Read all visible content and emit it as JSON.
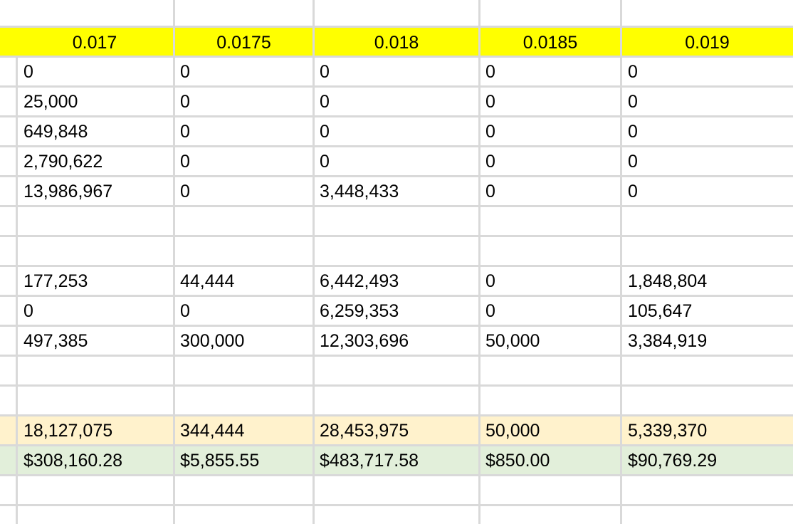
{
  "header": {
    "rates": [
      "0.017",
      "0.0175",
      "0.018",
      "0.0185",
      "0.019"
    ]
  },
  "rows": [
    [
      "0",
      "0",
      "0",
      "0",
      "0"
    ],
    [
      "25,000",
      "0",
      "0",
      "0",
      "0"
    ],
    [
      "649,848",
      "0",
      "0",
      "0",
      "0"
    ],
    [
      "2,790,622",
      "0",
      "0",
      "0",
      "0"
    ],
    [
      "13,986,967",
      "0",
      "3,448,433",
      "0",
      "0"
    ],
    [
      "",
      "",
      "",
      "",
      ""
    ],
    [
      "",
      "",
      "",
      "",
      ""
    ],
    [
      "177,253",
      "44,444",
      "6,442,493",
      "0",
      "1,848,804"
    ],
    [
      "0",
      "0",
      "6,259,353",
      "0",
      "105,647"
    ],
    [
      "497,385",
      "300,000",
      "12,303,696",
      "50,000",
      "3,384,919"
    ],
    [
      "",
      "",
      "",
      "",
      ""
    ],
    [
      "",
      "",
      "",
      "",
      ""
    ]
  ],
  "totals": [
    "18,127,075",
    "344,444",
    "28,453,975",
    "50,000",
    "5,339,370"
  ],
  "costs": [
    "$308,160.28",
    "$5,855.55",
    "$483,717.58",
    "$850.00",
    "$90,769.29"
  ],
  "colors": {
    "header_fill": "#ffff00",
    "totals_fill": "#fff2cc",
    "costs_fill": "#e2efda",
    "gridline": "#d9d9d9"
  }
}
